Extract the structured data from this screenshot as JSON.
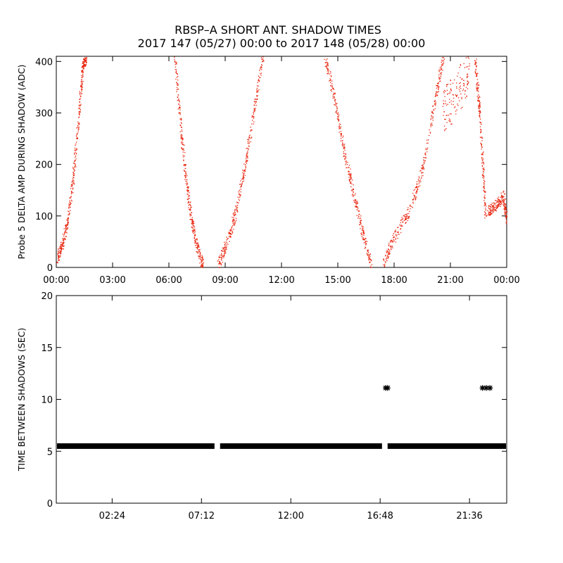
{
  "title_line1": "RBSP–A SHORT ANT. SHADOW TIMES",
  "title_line2": "2017 147 (05/27) 00:00 to 2017 148 (05/28) 00:00",
  "chart_data": [
    {
      "type": "scatter",
      "ylabel": "Probe 5 DELTA AMP DURING SHADOW (ADC)",
      "xlabel": "",
      "xlim": [
        0,
        24
      ],
      "ylim": [
        0,
        410
      ],
      "xtick_values": [
        0,
        3,
        6,
        9,
        12,
        15,
        18,
        21,
        24
      ],
      "xtick_labels": [
        "00:00",
        "03:00",
        "06:00",
        "09:00",
        "12:00",
        "15:00",
        "18:00",
        "21:00",
        "00:00"
      ],
      "ytick_values": [
        0,
        100,
        200,
        300,
        400
      ],
      "ytick_labels": [
        "0",
        "100",
        "200",
        "300",
        "400"
      ],
      "marker_color": "#e8230c",
      "series": [
        {
          "segments": [
            {
              "x": [
                0.0,
                0.3,
                0.6,
                0.9,
                1.2,
                1.4,
                1.6
              ],
              "y": [
                15,
                45,
                90,
                180,
                300,
                390,
                410
              ]
            },
            {
              "x": [
                6.3,
                6.6,
                6.9,
                7.2,
                7.5,
                7.8
              ],
              "y": [
                410,
                280,
                170,
                90,
                40,
                5
              ]
            },
            {
              "x": [
                8.6,
                9.0,
                9.5,
                10.0,
                10.5,
                11.0
              ],
              "y": [
                5,
                40,
                100,
                190,
                300,
                410
              ]
            },
            {
              "x": [
                14.3,
                14.8,
                15.3,
                15.8,
                16.3,
                16.8
              ],
              "y": [
                410,
                330,
                230,
                150,
                70,
                0
              ]
            },
            {
              "x": [
                17.4,
                18.0,
                18.8,
                19.5,
                20.2,
                20.6
              ],
              "y": [
                5,
                60,
                110,
                190,
                330,
                410
              ]
            },
            {
              "x": [
                20.6,
                21.3,
                22.0
              ],
              "y": [
                300,
                340,
                380
              ]
            },
            {
              "x": [
                22.3,
                22.5,
                22.7,
                22.85
              ],
              "y": [
                410,
                320,
                210,
                100
              ]
            },
            {
              "x": [
                23.0,
                23.4,
                23.8,
                24.0
              ],
              "y": [
                110,
                120,
                140,
                90
              ]
            }
          ]
        }
      ]
    },
    {
      "type": "scatter",
      "ylabel": "TIME BETWEEN SHADOWS (SEC)",
      "xlabel": "",
      "xlim": [
        -0.6,
        23.6
      ],
      "ylim": [
        0,
        20
      ],
      "xtick_values": [
        2.4,
        7.2,
        12.0,
        16.8,
        21.6
      ],
      "xtick_labels": [
        "02:24",
        "07:12",
        "12:00",
        "16:48",
        "21:36"
      ],
      "ytick_values": [
        0,
        5,
        10,
        15,
        20
      ],
      "ytick_labels": [
        "0",
        "5",
        "10",
        "15",
        "20"
      ],
      "marker": "asterisk",
      "marker_color": "#000000",
      "series": [
        {
          "ranges": [
            {
              "x_start": -0.6,
              "x_end": 7.9,
              "y": 5.5
            },
            {
              "x_start": 8.2,
              "x_end": 16.9,
              "y": 5.5
            },
            {
              "x_start": 17.2,
              "x_end": 23.6,
              "y": 5.5
            }
          ],
          "points": [
            {
              "x": 17.1,
              "y": 11.1
            },
            {
              "x": 17.2,
              "y": 11.1
            },
            {
              "x": 22.3,
              "y": 11.1
            },
            {
              "x": 22.5,
              "y": 11.1
            },
            {
              "x": 22.7,
              "y": 11.1
            }
          ]
        }
      ]
    }
  ]
}
